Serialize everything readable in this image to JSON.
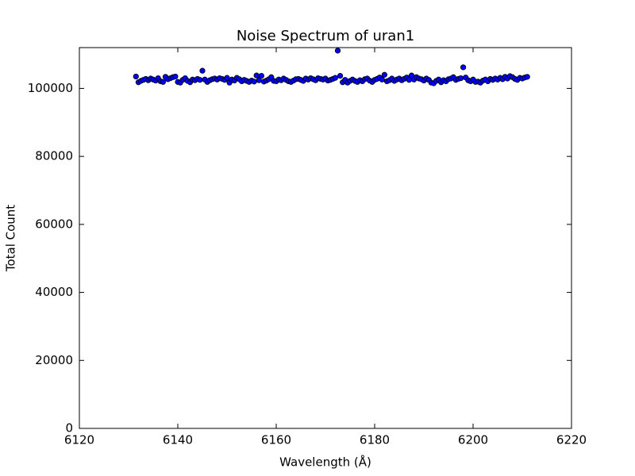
{
  "chart_data": {
    "type": "scatter",
    "title": "Noise Spectrum of uran1",
    "x_label": "Wavelength (Å)",
    "y_label": "Total Count",
    "xlim": [
      6120,
      6220
    ],
    "xticks": [
      6120,
      6140,
      6160,
      6180,
      6200,
      6220
    ],
    "ylim": [
      0,
      112000
    ],
    "yticks": [
      0,
      20000,
      40000,
      60000,
      80000,
      100000
    ],
    "grid": false,
    "series": [
      {
        "color": "#0000ff",
        "x": [
          6131.5,
          6132,
          6132.5,
          6133,
          6133.5,
          6134,
          6134.5,
          6135,
          6135.5,
          6136,
          6136.5,
          6137,
          6137.5,
          6138,
          6138.5,
          6139,
          6139.5,
          6140,
          6140.5,
          6141,
          6141.5,
          6142,
          6142.5,
          6143,
          6143.5,
          6144,
          6144.5,
          6145,
          6145.5,
          6146,
          6146.5,
          6147,
          6147.5,
          6148,
          6148.5,
          6149,
          6149.5,
          6150,
          6150.5,
          6151,
          6151.5,
          6152,
          6152.5,
          6153,
          6153.5,
          6154,
          6154.5,
          6155,
          6155.5,
          6156,
          6156.5,
          6157,
          6157.5,
          6158,
          6158.5,
          6159,
          6159.5,
          6160,
          6160.5,
          6161,
          6161.5,
          6162,
          6162.5,
          6163,
          6163.5,
          6164,
          6164.5,
          6165,
          6165.5,
          6166,
          6166.5,
          6167,
          6167.5,
          6168,
          6168.5,
          6169,
          6169.5,
          6170,
          6170.5,
          6171,
          6171.5,
          6172,
          6172.5,
          6173,
          6173.5,
          6174,
          6174.5,
          6175,
          6175.5,
          6176,
          6176.5,
          6177,
          6177.5,
          6178,
          6178.5,
          6179,
          6179.5,
          6180,
          6180.5,
          6181,
          6181.5,
          6182,
          6182.5,
          6183,
          6183.5,
          6184,
          6184.5,
          6185,
          6185.5,
          6186,
          6186.5,
          6187,
          6187.5,
          6188,
          6188.5,
          6189,
          6189.5,
          6190,
          6190.5,
          6191,
          6191.5,
          6192,
          6192.5,
          6193,
          6193.5,
          6194,
          6194.5,
          6195,
          6195.5,
          6196,
          6196.5,
          6197,
          6197.5,
          6198,
          6198.5,
          6199,
          6199.5,
          6200,
          6200.5,
          6201,
          6201.5,
          6202,
          6202.5,
          6203,
          6203.5,
          6204,
          6204.5,
          6205,
          6205.5,
          6206,
          6206.5,
          6207,
          6207.5,
          6208,
          6208.5,
          6209,
          6209.5,
          6210,
          6210.5,
          6211
        ],
        "values": [
          103500,
          101800,
          102200,
          102500,
          102800,
          102400,
          102900,
          102600,
          102300,
          103000,
          102100,
          101900,
          103400,
          102700,
          103000,
          103300,
          103500,
          101900,
          101700,
          102500,
          103000,
          102200,
          101800,
          102600,
          102400,
          102800,
          102500,
          105200,
          102600,
          101900,
          102400,
          102700,
          102900,
          102600,
          103000,
          102800,
          102500,
          103100,
          101700,
          102600,
          102300,
          103100,
          102700,
          102100,
          102500,
          102200,
          101900,
          102300,
          102000,
          103800,
          102400,
          103700,
          102000,
          102300,
          102700,
          103300,
          102200,
          102100,
          102600,
          102400,
          102900,
          102500,
          102100,
          101900,
          102300,
          102700,
          102800,
          102500,
          102200,
          102900,
          102600,
          103000,
          102700,
          102400,
          103000,
          102800,
          102600,
          102900,
          102300,
          102500,
          102800,
          103100,
          111100,
          103700,
          101800,
          102500,
          101700,
          102200,
          102600,
          102200,
          101900,
          102400,
          102100,
          102700,
          102900,
          102300,
          101900,
          102500,
          102800,
          103200,
          102600,
          104000,
          102100,
          102400,
          102900,
          102200,
          102600,
          102900,
          102400,
          102800,
          103200,
          102500,
          103800,
          102600,
          103300,
          102900,
          102700,
          102300,
          102900,
          102500,
          101700,
          101500,
          102200,
          102600,
          101800,
          102400,
          102100,
          102700,
          102900,
          103300,
          102500,
          102800,
          103000,
          106200,
          103200,
          102400,
          102100,
          102600,
          101900,
          102000,
          101700,
          102300,
          102600,
          102100,
          102800,
          102500,
          102900,
          102600,
          103100,
          102700,
          103400,
          102900,
          103600,
          103300,
          102800,
          102500,
          103100,
          102900,
          103200,
          103400
        ]
      }
    ]
  }
}
